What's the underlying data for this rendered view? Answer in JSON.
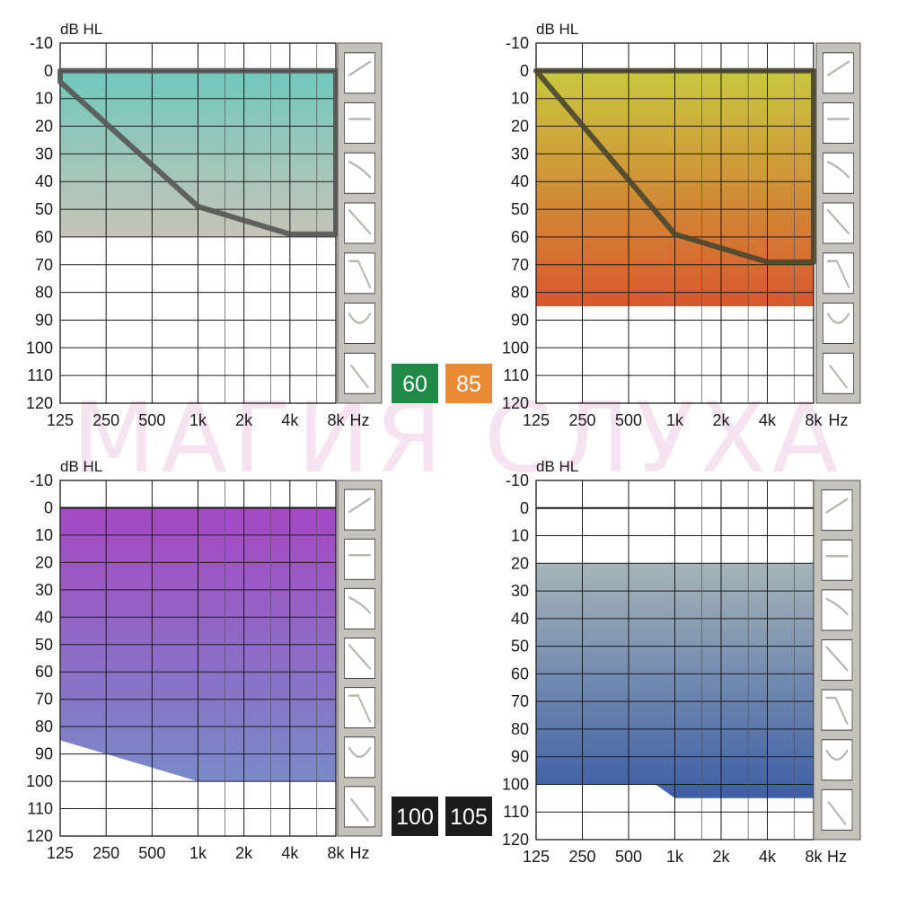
{
  "watermark": "МАГИЯ СЛУХА",
  "badges": [
    {
      "label": "60",
      "color": "#1f8a47"
    },
    {
      "label": "85",
      "color": "#ec8b35"
    },
    {
      "label": "100",
      "color": "#1c1c1c"
    },
    {
      "label": "105",
      "color": "#1c1c1c"
    }
  ],
  "legend_icons": [
    "rising-curve-icon",
    "flat-curve-icon",
    "gently-sloping-curve-icon",
    "steeply-sloping-curve-icon",
    "precipitous-drop-curve-icon",
    "cookie-bite-curve-icon",
    "high-frequency-slope-icon"
  ],
  "chart_data": [
    {
      "type": "area",
      "ylabel": "dB HL",
      "xlabel": "Hz",
      "x_tick_labels": [
        "125",
        "250",
        "500",
        "1k",
        "2k",
        "4k",
        "8k"
      ],
      "y_ticks": [
        -10,
        0,
        10,
        20,
        30,
        40,
        50,
        60,
        70,
        80,
        90,
        100,
        110,
        120
      ],
      "ylim": [
        -10,
        120
      ],
      "y_inverted": true,
      "region": {
        "top_db": 0,
        "bottom": [
          [
            125,
            60
          ],
          [
            8000,
            60
          ]
        ],
        "gradient": [
          "#6fc9bc",
          "#c7c4b8"
        ]
      },
      "line": [
        [
          125,
          4
        ],
        [
          1000,
          49
        ],
        [
          4000,
          59
        ],
        [
          8000,
          59
        ]
      ],
      "line_color": "#555555"
    },
    {
      "type": "area",
      "ylabel": "dB HL",
      "xlabel": "Hz",
      "x_tick_labels": [
        "125",
        "250",
        "500",
        "1k",
        "2k",
        "4k",
        "8k"
      ],
      "y_ticks": [
        -10,
        0,
        10,
        20,
        30,
        40,
        50,
        60,
        70,
        80,
        90,
        100,
        110,
        120
      ],
      "ylim": [
        -10,
        120
      ],
      "y_inverted": true,
      "region": {
        "top_db": 0,
        "bottom": [
          [
            125,
            85
          ],
          [
            8000,
            85
          ]
        ],
        "gradient": [
          "#c9c840",
          "#d9582e"
        ]
      },
      "line": [
        [
          125,
          0
        ],
        [
          1000,
          59
        ],
        [
          4000,
          69
        ],
        [
          8000,
          69
        ]
      ],
      "line_color": "#4a4630"
    },
    {
      "type": "area",
      "ylabel": "dB HL",
      "xlabel": "Hz",
      "x_tick_labels": [
        "125",
        "250",
        "500",
        "1k",
        "2k",
        "4k",
        "8k"
      ],
      "y_ticks": [
        -10,
        0,
        10,
        20,
        30,
        40,
        50,
        60,
        70,
        80,
        90,
        100,
        110,
        120
      ],
      "ylim": [
        -10,
        120
      ],
      "y_inverted": true,
      "region": {
        "top_db": 0,
        "bottom": [
          [
            125,
            85
          ],
          [
            1000,
            100
          ],
          [
            8000,
            100
          ]
        ],
        "gradient": [
          "#a548c3",
          "#7a8ac8"
        ]
      },
      "line": null
    },
    {
      "type": "area",
      "ylabel": "dB HL",
      "xlabel": "Hz",
      "x_tick_labels": [
        "125",
        "250",
        "500",
        "1k",
        "2k",
        "4k",
        "8k"
      ],
      "y_ticks": [
        -10,
        0,
        10,
        20,
        30,
        40,
        50,
        60,
        70,
        80,
        90,
        100,
        110,
        120
      ],
      "ylim": [
        -10,
        120
      ],
      "y_inverted": true,
      "region": {
        "top_db": 20,
        "bottom": [
          [
            125,
            100
          ],
          [
            750,
            100
          ],
          [
            1000,
            105
          ],
          [
            8000,
            105
          ]
        ],
        "gradient": [
          "#a5b5b8",
          "#3e5ea6"
        ]
      },
      "line": null
    }
  ]
}
